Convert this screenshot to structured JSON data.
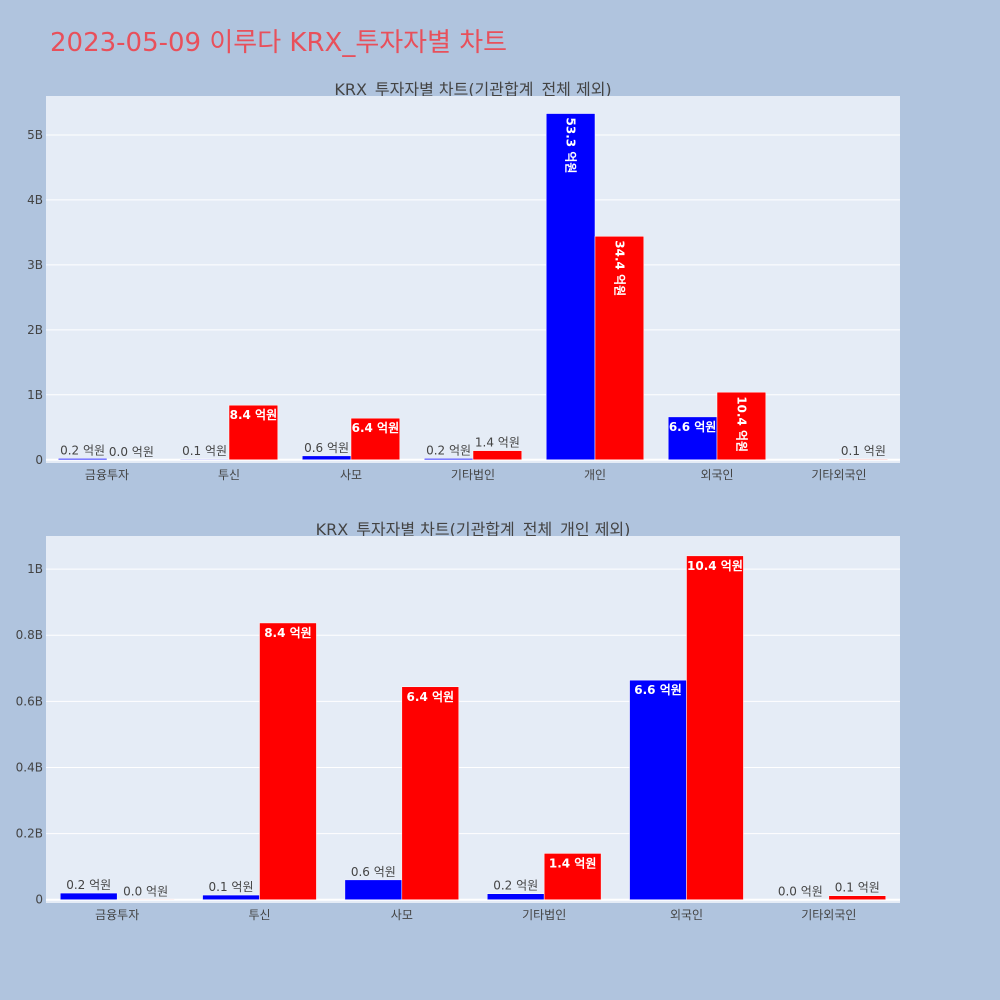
{
  "title": "2023-05-09 이루다 KRX_투자자별 차트",
  "colors": {
    "buy": "#0000ff",
    "sell": "#ff0000",
    "plot_bg": "#e5ecf6",
    "page_bg": "#b0c4de",
    "title": "#e8505b"
  },
  "chart_data": [
    {
      "type": "bar",
      "title": "KRX_투자자별 차트(기관합계_전체 제외)",
      "categories": [
        "금융투자",
        "투신",
        "사모",
        "기타법인",
        "개인",
        "외국인",
        "기타외국인"
      ],
      "series": [
        {
          "color": "#0000ff",
          "values": [
            0.02,
            0.01,
            0.06,
            0.02,
            5.33,
            0.66,
            0.0
          ],
          "labels": [
            "0.2 억원",
            "0.1 억원",
            "0.6 억원",
            "0.2 억원",
            "53.3 억원",
            "6.6 억원",
            ""
          ]
        },
        {
          "color": "#ff0000",
          "values": [
            0.0,
            0.84,
            0.64,
            0.14,
            3.44,
            1.04,
            0.01
          ],
          "labels": [
            "0.0 억원",
            "8.4 억원",
            "6.4 억원",
            "1.4 억원",
            "34.4 억원",
            "10.4 억원",
            "0.1 억원"
          ]
        }
      ],
      "ylim": [
        -0.05,
        5.6
      ],
      "yticks": [
        0,
        1,
        2,
        3,
        4,
        5
      ],
      "ytick_labels": [
        "0",
        "1B",
        "2B",
        "3B",
        "4B",
        "5B"
      ],
      "grid": true,
      "legend": "none"
    },
    {
      "type": "bar",
      "title": "KRX_투자자별 차트(기관합계_전체_개인 제외)",
      "categories": [
        "금융투자",
        "투신",
        "사모",
        "기타법인",
        "외국인",
        "기타외국인"
      ],
      "series": [
        {
          "color": "#0000ff",
          "values": [
            0.02,
            0.014,
            0.06,
            0.018,
            0.664,
            0.0
          ],
          "labels": [
            "0.2 억원",
            "0.1 억원",
            "0.6 억원",
            "0.2 억원",
            "6.6 억원",
            "0.0 억원"
          ]
        },
        {
          "color": "#ff0000",
          "values": [
            0.001,
            0.837,
            0.644,
            0.14,
            1.04,
            0.012
          ],
          "labels": [
            "0.0 억원",
            "8.4 억원",
            "6.4 억원",
            "1.4 억원",
            "10.4 억원",
            "0.1 억원"
          ]
        }
      ],
      "ylim": [
        -0.01,
        1.1
      ],
      "yticks": [
        0,
        0.2,
        0.4,
        0.6,
        0.8,
        1.0
      ],
      "ytick_labels": [
        "0",
        "0.2B",
        "0.4B",
        "0.6B",
        "0.8B",
        "1B"
      ],
      "grid": true,
      "legend": "none"
    }
  ]
}
